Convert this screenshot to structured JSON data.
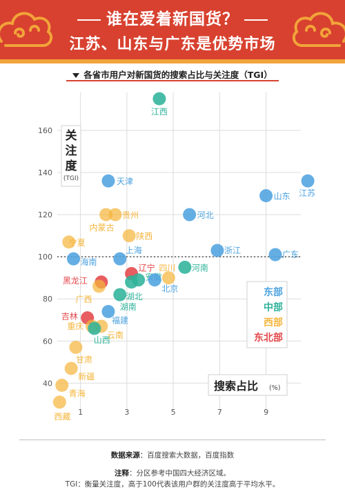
{
  "header": {
    "line1": "谁在爱着新国货？",
    "line2": "江苏、山东与广东是优势市场"
  },
  "subtitle": "各省市用户对新国货的搜索占比与关注度（TGI）",
  "colors": {
    "banner": "#d8412f",
    "banner_accent": "#f2a43a",
    "east": "#4ea3e0",
    "central": "#2fb39a",
    "west": "#f5b63d",
    "northeast": "#e4474a"
  },
  "chart_data": {
    "type": "scatter",
    "xlabel": "搜索占比",
    "xunit": "(%)",
    "ylabel": "关注度",
    "yunit": "(TGI)",
    "xlim": [
      0,
      10.5
    ],
    "ylim": [
      27,
      178
    ],
    "xticks": [
      1,
      3,
      5,
      7,
      9
    ],
    "yticks": [
      40,
      60,
      80,
      100,
      120,
      140,
      160
    ],
    "reference_line": 100,
    "legend": [
      {
        "key": "east",
        "label": "东部"
      },
      {
        "key": "central",
        "label": "中部"
      },
      {
        "key": "west",
        "label": "西部"
      },
      {
        "key": "northeast",
        "label": "东北部"
      }
    ],
    "points": [
      {
        "name": "江西",
        "region": "central",
        "x": 4.4,
        "y": 175
      },
      {
        "name": "天津",
        "region": "east",
        "x": 2.2,
        "y": 136
      },
      {
        "name": "江苏",
        "region": "east",
        "x": 10.8,
        "y": 136
      },
      {
        "name": "山东",
        "region": "east",
        "x": 9.0,
        "y": 129
      },
      {
        "name": "贵州",
        "region": "west",
        "x": 2.5,
        "y": 120
      },
      {
        "name": "河北",
        "region": "east",
        "x": 5.7,
        "y": 120
      },
      {
        "name": "内蒙古",
        "region": "west",
        "x": 2.1,
        "y": 120
      },
      {
        "name": "陕西",
        "region": "west",
        "x": 3.1,
        "y": 110
      },
      {
        "name": "宁夏",
        "region": "west",
        "x": 0.5,
        "y": 107
      },
      {
        "name": "浙江",
        "region": "east",
        "x": 6.9,
        "y": 103
      },
      {
        "name": "上海",
        "region": "east",
        "x": 2.7,
        "y": 99
      },
      {
        "name": "海南",
        "region": "east",
        "x": 0.7,
        "y": 99
      },
      {
        "name": "广东",
        "region": "east",
        "x": 9.4,
        "y": 101
      },
      {
        "name": "辽宁",
        "region": "northeast",
        "x": 3.2,
        "y": 92
      },
      {
        "name": "四川",
        "region": "west",
        "x": 4.8,
        "y": 90
      },
      {
        "name": "河南",
        "region": "central",
        "x": 5.5,
        "y": 95
      },
      {
        "name": "黑龙江",
        "region": "northeast",
        "x": 1.9,
        "y": 88
      },
      {
        "name": "安徽",
        "region": "central",
        "x": 3.5,
        "y": 89
      },
      {
        "name": "北京",
        "region": "east",
        "x": 4.2,
        "y": 89
      },
      {
        "name": "湖北",
        "region": "central",
        "x": 3.2,
        "y": 88
      },
      {
        "name": "广西",
        "region": "west",
        "x": 1.8,
        "y": 86
      },
      {
        "name": "湖南",
        "region": "central",
        "x": 2.7,
        "y": 82
      },
      {
        "name": "福建",
        "region": "east",
        "x": 2.2,
        "y": 74
      },
      {
        "name": "吉林",
        "region": "northeast",
        "x": 1.3,
        "y": 71
      },
      {
        "name": "重庆",
        "region": "west",
        "x": 1.5,
        "y": 67
      },
      {
        "name": "云南",
        "region": "west",
        "x": 1.9,
        "y": 67
      },
      {
        "name": "山西",
        "region": "central",
        "x": 1.6,
        "y": 66
      },
      {
        "name": "甘肃",
        "region": "west",
        "x": 0.8,
        "y": 57
      },
      {
        "name": "新疆",
        "region": "west",
        "x": 0.6,
        "y": 47
      },
      {
        "name": "青海",
        "region": "west",
        "x": 0.2,
        "y": 39
      },
      {
        "name": "西藏",
        "region": "west",
        "x": 0.1,
        "y": 31
      }
    ]
  },
  "footer": {
    "source_label": "数据来源",
    "source_text": "：百度搜索大数据，百度指数",
    "note_label": "注释",
    "note_text": "：分区参考中国四大经济区域。",
    "tgi_text": "TGI：衡量关注度，高于100代表该用户群的关注度高于平均水平。"
  }
}
